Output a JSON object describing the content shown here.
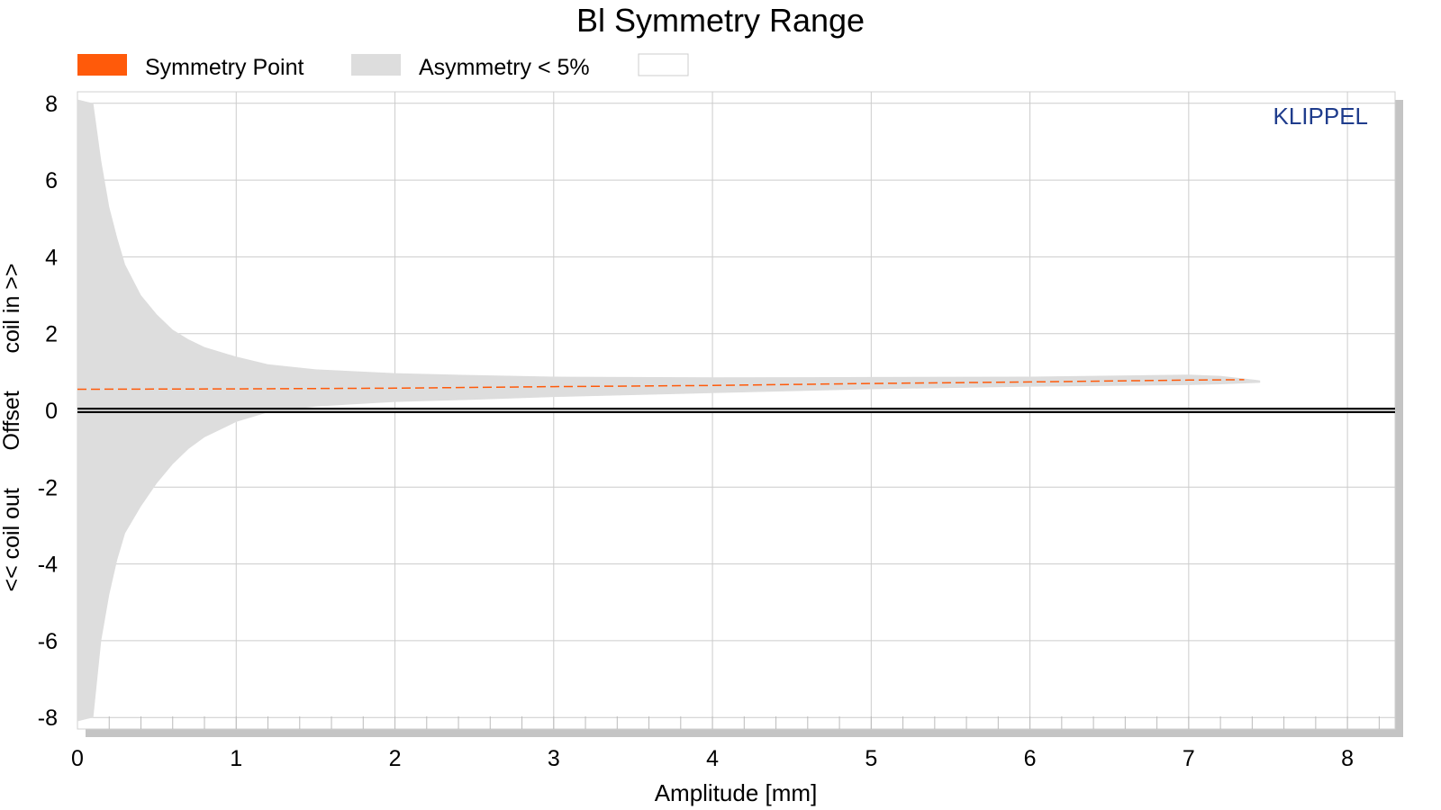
{
  "chart_data": {
    "type": "area",
    "title": "Bl Symmetry Range",
    "xlabel": "Amplitude [mm]",
    "ylabel": "<< coil out      Offset      coil in >>",
    "xlim": [
      0,
      8.3
    ],
    "ylim": [
      -8.3,
      8.3
    ],
    "x_ticks": [
      0,
      1,
      2,
      3,
      4,
      5,
      6,
      7,
      8
    ],
    "y_ticks": [
      -8,
      -6,
      -4,
      -2,
      0,
      2,
      4,
      6,
      8
    ],
    "grid": true,
    "legend": {
      "placement": "top-left",
      "entries": [
        {
          "label": "Symmetry Point",
          "color": "#ff5a0a"
        },
        {
          "label": "Asymmetry < 5%",
          "color": "#dddddd"
        },
        {
          "label": "",
          "color": "#ffffff"
        }
      ]
    },
    "watermark": "KLIPPEL",
    "colors": {
      "symmetry_point": "#ff5a0a",
      "asymmetry_band": "#dddddd",
      "zero_line": "#000000",
      "grid": "#cccccc",
      "watermark": "#1f3c8c"
    },
    "series": [
      {
        "name": "Asymmetry < 5%",
        "type": "band",
        "x": [
          0.0,
          0.05,
          0.1,
          0.15,
          0.2,
          0.25,
          0.3,
          0.4,
          0.5,
          0.6,
          0.7,
          0.8,
          1.0,
          1.2,
          1.5,
          2.0,
          2.5,
          3.0,
          4.0,
          5.0,
          6.0,
          7.0,
          7.2,
          7.45
        ],
        "upper": [
          8.1,
          8.05,
          8.0,
          6.5,
          5.3,
          4.5,
          3.8,
          3.0,
          2.5,
          2.1,
          1.85,
          1.65,
          1.4,
          1.2,
          1.07,
          0.97,
          0.92,
          0.88,
          0.86,
          0.87,
          0.88,
          0.93,
          0.9,
          0.78
        ],
        "lower": [
          -8.1,
          -8.05,
          -8.0,
          -6.0,
          -4.8,
          -3.9,
          -3.2,
          -2.5,
          -1.9,
          -1.4,
          -1.0,
          -0.7,
          -0.3,
          -0.05,
          0.1,
          0.22,
          0.28,
          0.35,
          0.45,
          0.55,
          0.62,
          0.66,
          0.68,
          0.72
        ]
      },
      {
        "name": "Symmetry Point",
        "type": "line",
        "x": [
          0.0,
          1.0,
          2.0,
          3.0,
          4.0,
          5.0,
          6.0,
          7.0,
          7.35
        ],
        "y": [
          0.55,
          0.56,
          0.58,
          0.62,
          0.65,
          0.7,
          0.74,
          0.79,
          0.8
        ]
      },
      {
        "name": "",
        "type": "line",
        "x": [
          0.0,
          8.3
        ],
        "y": [
          0.0,
          0.0
        ]
      }
    ]
  }
}
